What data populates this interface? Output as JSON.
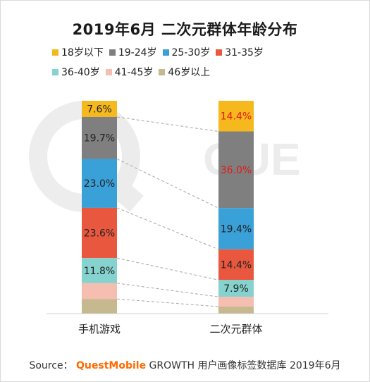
{
  "title": "2019年6月 二次元群体年龄分布",
  "source": {
    "prefix": "Source：",
    "brand": "QuestMobile",
    "suffix": "GROWTH 用户画像标签数据库 2019年6月"
  },
  "watermark": {
    "text": "QUE"
  },
  "colors": {
    "series": [
      "#f5b91e",
      "#7f7f7f",
      "#3aa0d8",
      "#e8573e",
      "#86d2cf",
      "#f6bdb1",
      "#c7b98f"
    ],
    "label_highlight": "#e31a1a",
    "label_default": "#222222",
    "connector": "#a6a6a6",
    "axis": "#d0d0d0"
  },
  "chart_data": {
    "type": "bar",
    "stacked": true,
    "percent_stacked": true,
    "categories": [
      "手机游戏",
      "二次元群体"
    ],
    "series": [
      {
        "name": "18岁以下",
        "values": [
          7.6,
          14.4
        ]
      },
      {
        "name": "19-24岁",
        "values": [
          19.7,
          36.0
        ]
      },
      {
        "name": "25-30岁",
        "values": [
          23.0,
          19.4
        ]
      },
      {
        "name": "31-35岁",
        "values": [
          23.6,
          14.4
        ]
      },
      {
        "name": "36-40岁",
        "values": [
          11.8,
          7.9
        ]
      },
      {
        "name": "41-45岁",
        "values": [
          7.4,
          4.6
        ]
      },
      {
        "name": "46岁以上",
        "values": [
          6.9,
          3.3
        ]
      }
    ],
    "data_labels": [
      [
        "7.6%",
        "19.7%",
        "23.0%",
        "23.6%",
        "11.8%",
        "",
        ""
      ],
      [
        "14.4%",
        "36.0%",
        "19.4%",
        "14.4%",
        "7.9%",
        "",
        ""
      ]
    ],
    "highlight_labels": [
      [],
      [
        0,
        1
      ]
    ],
    "ylim": [
      0,
      100
    ],
    "legend_position": "top",
    "grid": false,
    "series_connectors": true
  }
}
